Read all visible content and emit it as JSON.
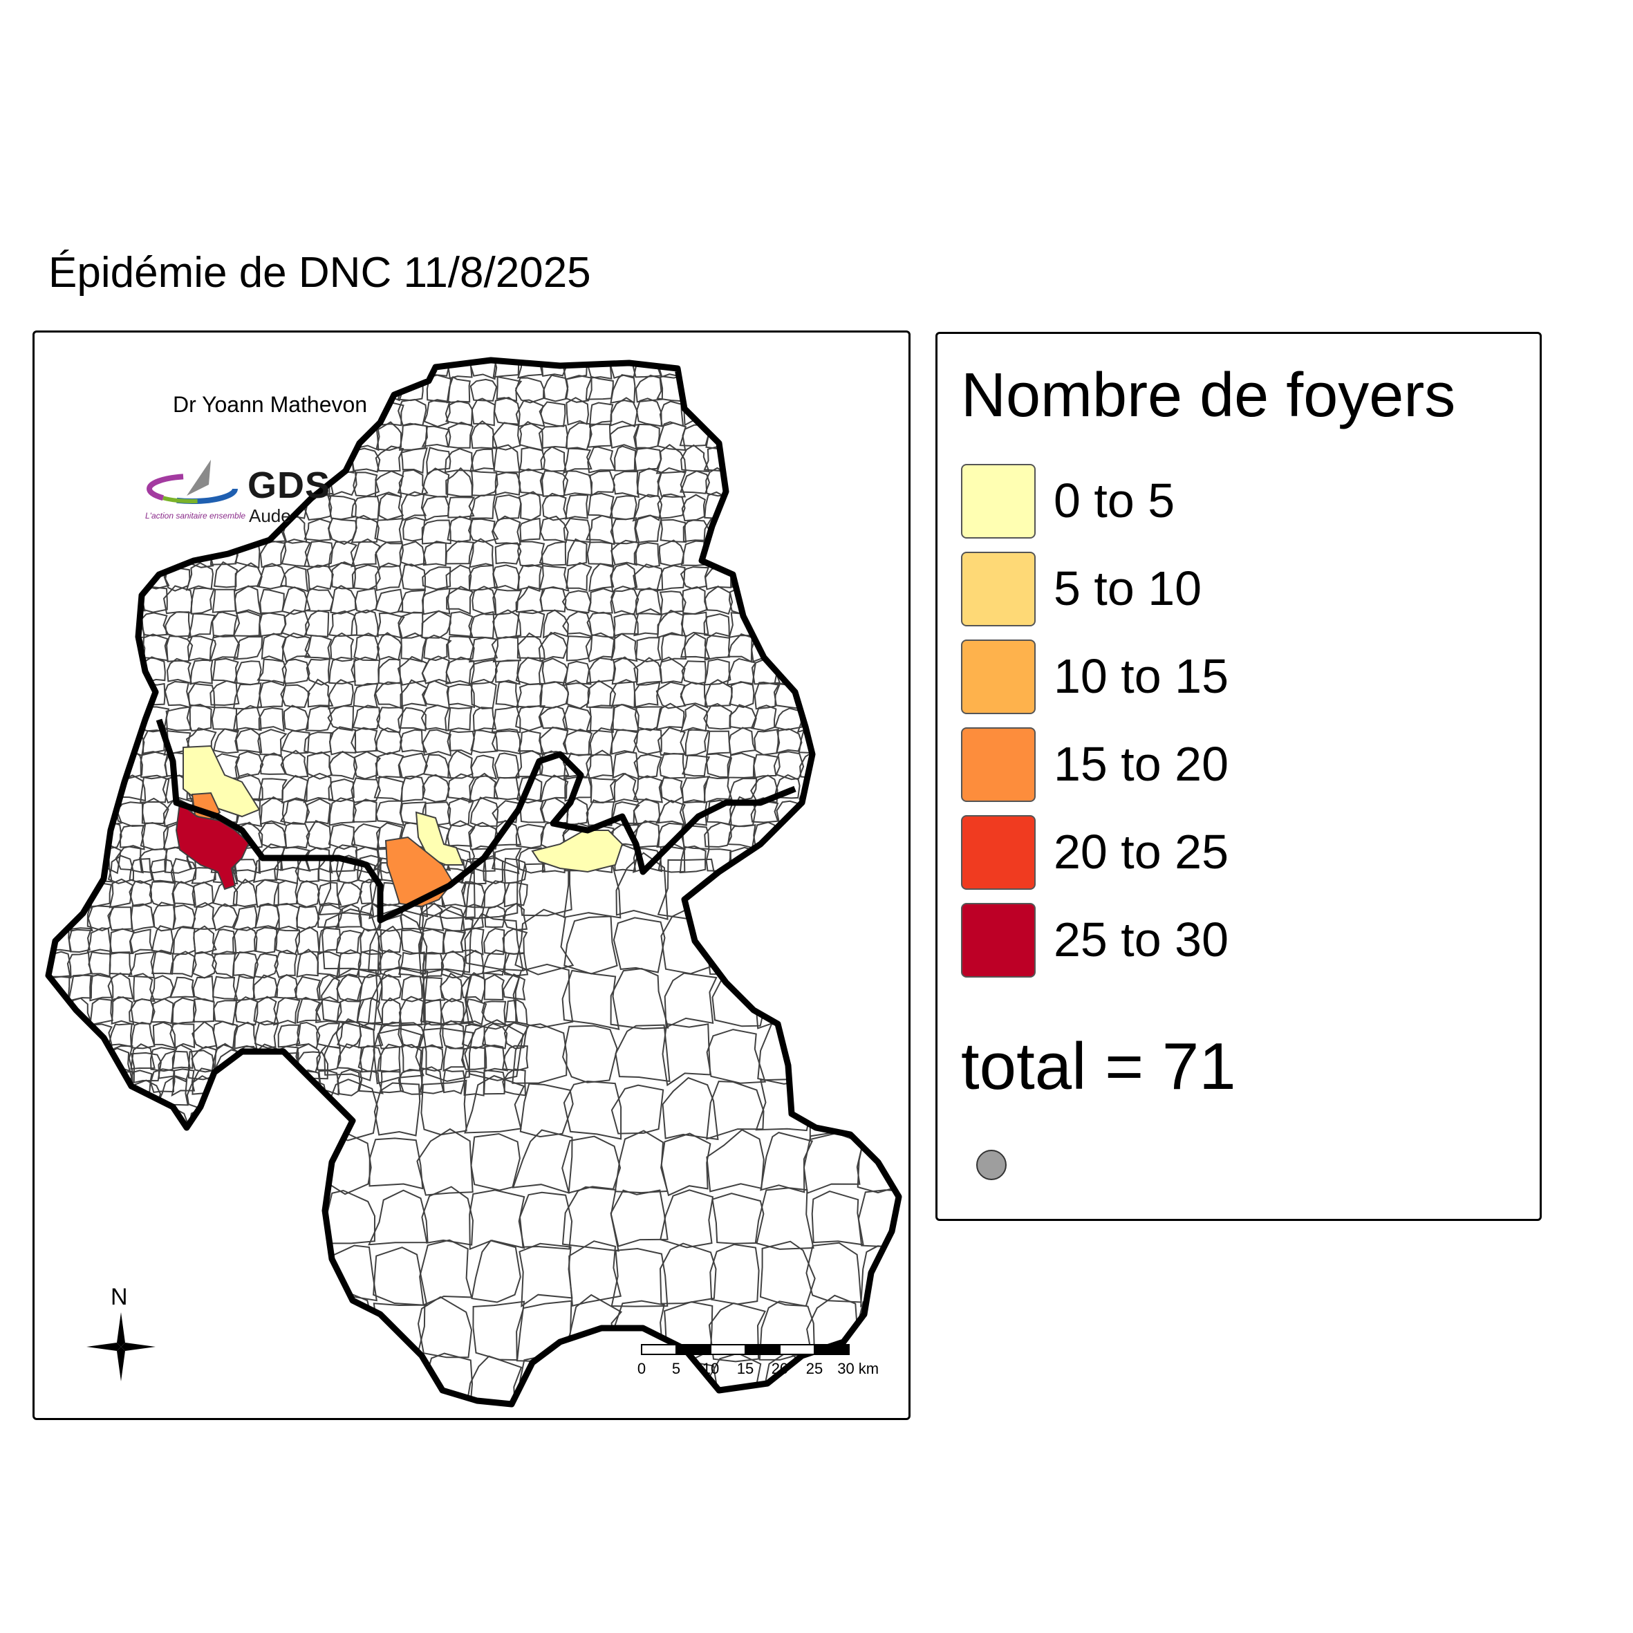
{
  "title": "Épidémie de DNC 11/8/2025",
  "map": {
    "author": "Dr Yoann Mathevon",
    "logo": {
      "name": "GDS",
      "sub": "Aude",
      "tagline": "L'action sanitaire ensemble",
      "icon": "gds-logo-icon"
    },
    "north_label": "N",
    "north_icon": "compass-rose-icon",
    "scale": {
      "ticks": [
        "0",
        "5",
        "10",
        "15",
        "20",
        "25",
        "30 km"
      ]
    }
  },
  "legend": {
    "title": "Nombre de foyers",
    "classes": [
      {
        "label": "0 to 5",
        "color": "#FFFFB2"
      },
      {
        "label": "5 to 10",
        "color": "#FED976"
      },
      {
        "label": "10 to 15",
        "color": "#FEB24C"
      },
      {
        "label": "15 to 20",
        "color": "#FD8D3C"
      },
      {
        "label": "20 to 25",
        "color": "#F03B20"
      },
      {
        "label": "25 to 30",
        "color": "#BD0026"
      }
    ],
    "total": "total = 71",
    "symbol_color": "#9E9E9E"
  },
  "colors": {
    "border": "#000000",
    "commune_border": "#404040",
    "background": "#FFFFFF"
  }
}
